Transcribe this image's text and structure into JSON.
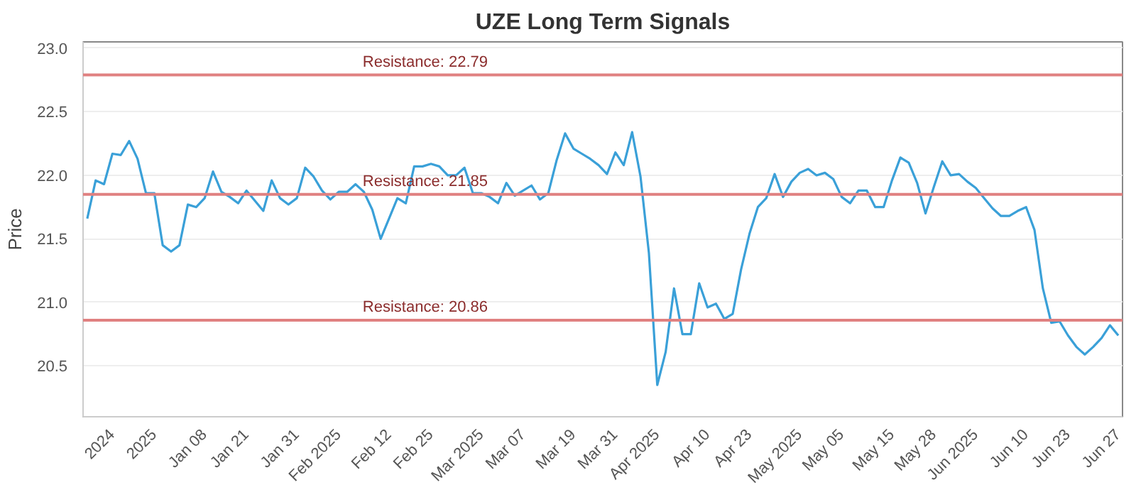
{
  "chart_data": {
    "type": "line",
    "title": "UZE Long Term Signals",
    "ylabel": "Price",
    "categories": [
      null,
      null,
      null,
      "2024",
      null,
      null,
      null,
      null,
      "2025",
      null,
      null,
      null,
      null,
      null,
      "Jan 08",
      null,
      null,
      null,
      null,
      "Jan 21",
      null,
      null,
      null,
      null,
      null,
      "Jan 31",
      null,
      null,
      null,
      null,
      "Feb 2025",
      null,
      null,
      null,
      null,
      null,
      "Feb 12",
      null,
      null,
      null,
      null,
      "Feb 25",
      null,
      null,
      null,
      null,
      null,
      "Mar 2025",
      null,
      null,
      null,
      null,
      "Mar 07",
      null,
      null,
      null,
      null,
      null,
      "Mar 19",
      null,
      null,
      null,
      null,
      "Mar 31",
      null,
      null,
      null,
      null,
      "Apr 2025",
      null,
      null,
      null,
      null,
      null,
      "Apr 10",
      null,
      null,
      null,
      null,
      "Apr 23",
      null,
      null,
      null,
      null,
      null,
      "May 2025",
      null,
      null,
      null,
      null,
      "May 05",
      null,
      null,
      null,
      null,
      null,
      "May 15",
      null,
      null,
      null,
      null,
      "May 28",
      null,
      null,
      null,
      null,
      "Jun 2025",
      null,
      null,
      null,
      null,
      null,
      "Jun 10",
      null,
      null,
      null,
      null,
      "Jun 23",
      null,
      null,
      null,
      null,
      null,
      "Jun 27"
    ],
    "series": [
      {
        "color": "#3aa0d8",
        "values": [
          21.66,
          21.96,
          21.93,
          22.17,
          22.16,
          22.27,
          22.13,
          21.86,
          21.86,
          21.45,
          21.4,
          21.45,
          21.77,
          21.75,
          21.82,
          22.03,
          21.87,
          21.83,
          21.78,
          21.88,
          21.8,
          21.72,
          21.96,
          21.82,
          21.77,
          21.82,
          22.06,
          21.99,
          21.88,
          21.81,
          21.87,
          21.87,
          21.93,
          21.87,
          21.73,
          21.5,
          21.66,
          21.82,
          21.78,
          22.07,
          22.07,
          22.09,
          22.07,
          22.0,
          22.0,
          22.06,
          21.86,
          21.86,
          21.83,
          21.78,
          21.94,
          21.84,
          21.88,
          21.92,
          21.81,
          21.86,
          22.12,
          22.33,
          22.21,
          22.17,
          22.13,
          22.08,
          22.01,
          22.18,
          22.08,
          22.34,
          21.99,
          21.39,
          20.35,
          20.61,
          21.11,
          20.75,
          20.75,
          21.15,
          20.96,
          20.99,
          20.87,
          20.91,
          21.26,
          21.54,
          21.75,
          21.82,
          22.01,
          21.83,
          21.95,
          22.02,
          22.05,
          22.0,
          22.02,
          21.97,
          21.83,
          21.78,
          21.88,
          21.88,
          21.75,
          21.75,
          21.96,
          22.14,
          22.1,
          21.94,
          21.7,
          21.91,
          22.11,
          22.0,
          22.01,
          21.95,
          21.9,
          21.82,
          21.74,
          21.68,
          21.68,
          21.72,
          21.75,
          21.57,
          21.11,
          20.84,
          20.85,
          20.74,
          20.65,
          20.59,
          20.65,
          20.72,
          20.82,
          20.74
        ]
      }
    ],
    "ylim": [
      20.1,
      23.05
    ],
    "yticks": [
      20.5,
      {
        "value": 21,
        "label": "21.0"
      },
      21.5,
      {
        "value": 22,
        "label": "22.0"
      },
      22.5,
      {
        "value": 23,
        "label": "23.0"
      }
    ],
    "grid": "y",
    "marker": "none",
    "line_style": "solid",
    "ref_lines": [
      {
        "axis": "y",
        "value": 22.79,
        "label": "Resistance: 22.79",
        "color": "#e08080"
      },
      {
        "axis": "y",
        "value": 21.85,
        "label": "Resistance: 21.85",
        "color": "#e08080"
      },
      {
        "axis": "y",
        "value": 20.86,
        "label": "Resistance: 20.86",
        "color": "#e08080"
      }
    ]
  }
}
